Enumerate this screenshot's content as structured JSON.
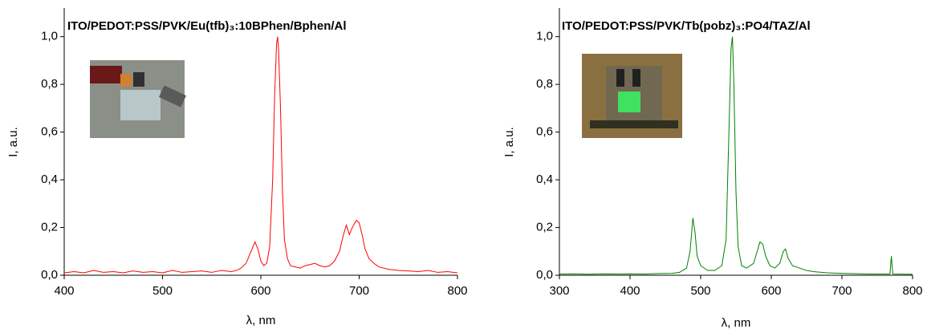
{
  "chart_data": [
    {
      "type": "line",
      "title": "ITO/PEDOT:PSS/PVK/Eu(tfb)₃:10BPhen/Bphen/Al",
      "x_label": "λ, nm",
      "y_label": "I, a.u.",
      "color": "#ff0000",
      "x": [
        400,
        410,
        420,
        430,
        440,
        450,
        460,
        470,
        480,
        490,
        500,
        510,
        520,
        530,
        540,
        550,
        560,
        570,
        575,
        580,
        585,
        590,
        594,
        597,
        600,
        603,
        606,
        609,
        612,
        614,
        616,
        617,
        618,
        620,
        622,
        624,
        627,
        630,
        635,
        640,
        645,
        650,
        655,
        660,
        665,
        670,
        675,
        680,
        684,
        687,
        690,
        693,
        697,
        700,
        703,
        706,
        710,
        715,
        720,
        730,
        740,
        750,
        760,
        770,
        780,
        790,
        800
      ],
      "values": [
        0.01,
        0.015,
        0.01,
        0.02,
        0.012,
        0.015,
        0.01,
        0.018,
        0.012,
        0.015,
        0.01,
        0.02,
        0.012,
        0.015,
        0.018,
        0.012,
        0.02,
        0.015,
        0.02,
        0.03,
        0.05,
        0.1,
        0.14,
        0.11,
        0.06,
        0.04,
        0.05,
        0.12,
        0.4,
        0.75,
        0.97,
        1.0,
        0.95,
        0.7,
        0.35,
        0.15,
        0.07,
        0.04,
        0.035,
        0.03,
        0.04,
        0.045,
        0.05,
        0.04,
        0.035,
        0.04,
        0.06,
        0.1,
        0.17,
        0.21,
        0.17,
        0.2,
        0.23,
        0.22,
        0.17,
        0.11,
        0.07,
        0.05,
        0.035,
        0.025,
        0.02,
        0.018,
        0.015,
        0.02,
        0.012,
        0.015,
        0.01
      ],
      "xlim": [
        400,
        800
      ],
      "xticks": [
        400,
        500,
        600,
        700,
        800
      ],
      "ylim": [
        0,
        1.12
      ],
      "yticks": [
        {
          "value": 0,
          "label": "0,0"
        },
        {
          "value": 0.2,
          "label": "0,2"
        },
        {
          "value": 0.4,
          "label": "0,4"
        },
        {
          "value": 0.6,
          "label": "0,6"
        },
        {
          "value": 0.8,
          "label": "0,8"
        },
        {
          "value": 1.0,
          "label": "1,0"
        }
      ]
    },
    {
      "type": "line",
      "title": "ITO/PEDOT:PSS/PVK/Tb(pobz)₃:PO4/TAZ/Al",
      "x_label": "λ, nm",
      "y_label": "I, a.u.",
      "color": "#008000",
      "x": [
        300,
        320,
        340,
        360,
        380,
        400,
        420,
        440,
        460,
        470,
        480,
        485,
        489,
        492,
        495,
        500,
        510,
        520,
        530,
        536,
        540,
        543,
        545,
        547,
        550,
        553,
        558,
        565,
        575,
        580,
        584,
        588,
        592,
        598,
        605,
        612,
        617,
        620,
        624,
        630,
        640,
        650,
        660,
        680,
        700,
        740,
        768,
        770,
        772,
        800
      ],
      "values": [
        0.005,
        0.006,
        0.004,
        0.006,
        0.005,
        0.006,
        0.005,
        0.007,
        0.008,
        0.012,
        0.03,
        0.1,
        0.24,
        0.18,
        0.08,
        0.04,
        0.02,
        0.02,
        0.04,
        0.15,
        0.6,
        0.95,
        1.0,
        0.8,
        0.35,
        0.12,
        0.04,
        0.03,
        0.05,
        0.1,
        0.14,
        0.13,
        0.08,
        0.04,
        0.03,
        0.05,
        0.1,
        0.11,
        0.07,
        0.04,
        0.03,
        0.02,
        0.015,
        0.01,
        0.008,
        0.005,
        0.005,
        0.08,
        0.005,
        0.004
      ],
      "xlim": [
        300,
        800
      ],
      "xticks": [
        300,
        400,
        500,
        600,
        700,
        800
      ],
      "ylim": [
        0,
        1.12
      ],
      "yticks": [
        {
          "value": 0,
          "label": "0,0"
        },
        {
          "value": 0.2,
          "label": "0,2"
        },
        {
          "value": 0.4,
          "label": "0,4"
        },
        {
          "value": 0.6,
          "label": "0,6"
        },
        {
          "value": 0.8,
          "label": "0,8"
        },
        {
          "value": 1.0,
          "label": "1,0"
        }
      ]
    }
  ]
}
